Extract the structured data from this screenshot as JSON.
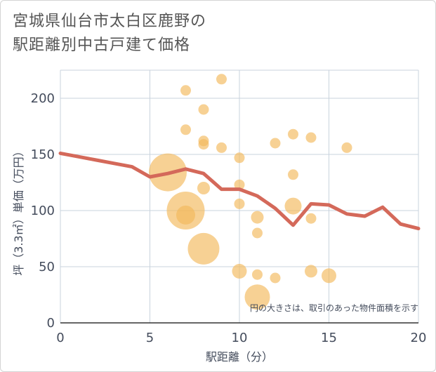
{
  "title": {
    "line1": "宮城県仙台市太白区鹿野の",
    "line2": "駅距離別中古戸建て価格"
  },
  "chart_data": {
    "type": "scatter",
    "xlabel": "駅距離（分）",
    "ylabel": "坪（3.3㎡）単価（万円）",
    "xlim": [
      0,
      20
    ],
    "ylim": [
      0,
      225
    ],
    "xticks": [
      0,
      5,
      10,
      15,
      20
    ],
    "yticks": [
      0,
      50,
      100,
      150,
      200
    ],
    "grid": true,
    "note": "円の大きさは、取引のあった物件面積を示す",
    "colors": {
      "bubble": "#f2b85a",
      "line": "#d4695a",
      "grid": "#c9d3dd",
      "background": "#ffffff"
    },
    "bubbles": [
      {
        "x": 6,
        "y": 134,
        "size": 18
      },
      {
        "x": 7,
        "y": 207,
        "size": 5
      },
      {
        "x": 7,
        "y": 172,
        "size": 5
      },
      {
        "x": 7,
        "y": 100,
        "size": 18
      },
      {
        "x": 7,
        "y": 96,
        "size": 9
      },
      {
        "x": 8,
        "y": 190,
        "size": 5
      },
      {
        "x": 8,
        "y": 162,
        "size": 5
      },
      {
        "x": 8,
        "y": 159,
        "size": 5
      },
      {
        "x": 8,
        "y": 120,
        "size": 6
      },
      {
        "x": 8,
        "y": 66,
        "size": 15
      },
      {
        "x": 9,
        "y": 217,
        "size": 5
      },
      {
        "x": 9,
        "y": 156,
        "size": 5
      },
      {
        "x": 10,
        "y": 147,
        "size": 5
      },
      {
        "x": 10,
        "y": 123,
        "size": 5
      },
      {
        "x": 10,
        "y": 106,
        "size": 5
      },
      {
        "x": 10,
        "y": 46,
        "size": 7
      },
      {
        "x": 11,
        "y": 94,
        "size": 6
      },
      {
        "x": 11,
        "y": 80,
        "size": 5
      },
      {
        "x": 11,
        "y": 43,
        "size": 5
      },
      {
        "x": 11,
        "y": 23,
        "size": 12
      },
      {
        "x": 12,
        "y": 160,
        "size": 5
      },
      {
        "x": 12,
        "y": 40,
        "size": 5
      },
      {
        "x": 13,
        "y": 168,
        "size": 5
      },
      {
        "x": 13,
        "y": 132,
        "size": 5
      },
      {
        "x": 13,
        "y": 104,
        "size": 8
      },
      {
        "x": 14,
        "y": 165,
        "size": 5
      },
      {
        "x": 14,
        "y": 93,
        "size": 5
      },
      {
        "x": 14,
        "y": 46,
        "size": 6
      },
      {
        "x": 15,
        "y": 42,
        "size": 7
      },
      {
        "x": 16,
        "y": 156,
        "size": 5
      }
    ],
    "trend_line": {
      "x": [
        0,
        1,
        2,
        3,
        4,
        5,
        6,
        7,
        8,
        9,
        10,
        11,
        12,
        13,
        14,
        15,
        16,
        17,
        18,
        19,
        20
      ],
      "y": [
        151,
        148,
        145,
        142,
        139,
        130,
        133,
        137,
        133,
        119,
        119,
        113,
        102,
        87,
        106,
        105,
        97,
        95,
        103,
        88,
        84
      ]
    }
  }
}
